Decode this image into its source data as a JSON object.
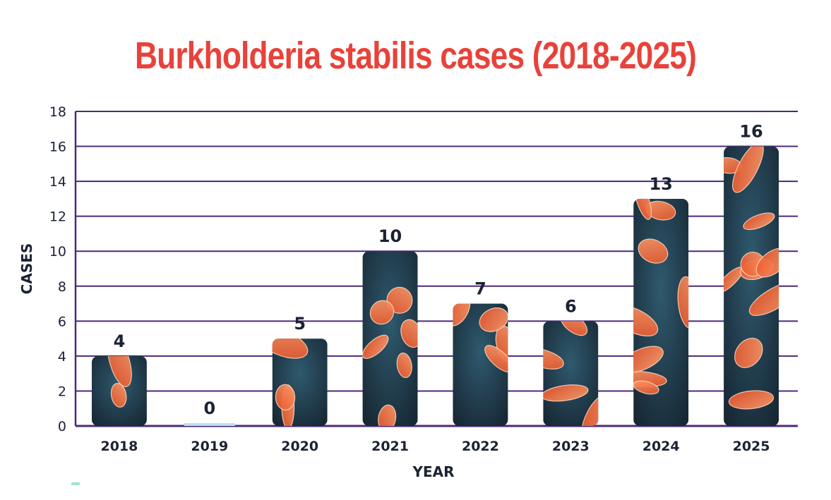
{
  "chart_data": {
    "type": "bar",
    "title": "Burkholderia stabilis cases (2018-2025)",
    "xlabel": "YEAR",
    "ylabel": "CASES",
    "categories": [
      "2018",
      "2019",
      "2020",
      "2021",
      "2022",
      "2023",
      "2024",
      "2025"
    ],
    "values": [
      4,
      0,
      5,
      10,
      7,
      6,
      13,
      16
    ],
    "data_labels": [
      "4",
      "0",
      "5",
      "10",
      "7",
      "6",
      "13",
      "16"
    ],
    "ylim": [
      0,
      18
    ],
    "yticks": [
      "0",
      "2",
      "4",
      "6",
      "8",
      "10",
      "12",
      "14",
      "16",
      "18"
    ],
    "grid": true,
    "colors": {
      "title": "#e8423a",
      "grid": "#4b2a7a",
      "bar_bg": "#1f3a4c",
      "bar_accent": "#f26a3c",
      "zero_bar": "#b7e3ee",
      "text": "#1b2233"
    }
  }
}
